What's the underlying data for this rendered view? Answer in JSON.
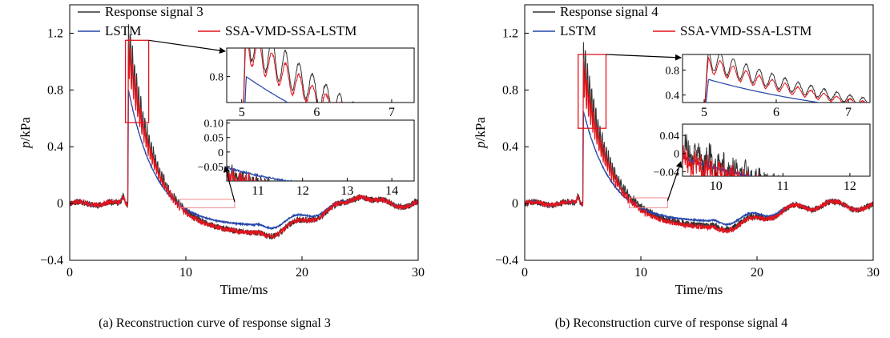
{
  "colors": {
    "response": "#333333",
    "lstm": "#2646a8",
    "ssa": "#e3141c",
    "zoom_box": "#e3141c",
    "zoom_box_light": "#f08a8a"
  },
  "chart_data": [
    {
      "id": "a",
      "type": "line",
      "caption": "(a) Reconstruction curve of response signal 3",
      "xlabel": "Time/ms",
      "ylabel_italic": "p",
      "ylabel_rest": "/kPa",
      "xlim": [
        0,
        30
      ],
      "ylim": [
        -0.4,
        1.4
      ],
      "xticks": [
        0,
        10,
        20,
        30
      ],
      "yticks": [
        -0.4,
        0,
        0.4,
        0.8,
        1.2
      ],
      "ytick_labels": [
        "−0.4",
        "0",
        "0.4",
        "0.8",
        "1.2"
      ],
      "legend": [
        {
          "name": "Response signal 3",
          "color_key": "response"
        },
        {
          "name": "LSTM",
          "color_key": "lstm"
        },
        {
          "name": "SSA-VMD-SSA-LSTM",
          "color_key": "ssa"
        }
      ],
      "series_shape": {
        "pre_level": 0.0,
        "onset": 5.0,
        "peak": {
          "response": 1.13,
          "lstm": 0.8,
          "ssa": 1.05
        },
        "trough_time": 16.0,
        "trough": {
          "response": -0.22,
          "lstm": -0.16,
          "ssa": -0.22
        },
        "bump_time": 25.0,
        "bump": 0.07,
        "end_level": 0.0
      },
      "zoom_regions": [
        {
          "xlim": [
            4.8,
            6.8
          ],
          "ylim": [
            0.57,
            1.15
          ],
          "color_key": "zoom_box"
        },
        {
          "xlim": [
            9.5,
            14.2
          ],
          "ylim": [
            -0.03,
            0.03
          ],
          "color_key": "zoom_box_light"
        }
      ],
      "insets": [
        {
          "xlim": [
            4.8,
            7.3
          ],
          "ylim": [
            0.6,
            1.02
          ],
          "xticks": [
            5,
            6,
            7
          ],
          "yticks": [
            0.8
          ],
          "ytick_labels": [
            "0.8"
          ]
        },
        {
          "xlim": [
            10.3,
            14.5
          ],
          "ylim": [
            -0.1,
            0.11
          ],
          "xticks": [
            11,
            12,
            13,
            14
          ],
          "yticks": [
            0.1,
            0.05,
            0,
            -0.05
          ],
          "ytick_labels": [
            "0.10",
            "0.05",
            "0",
            "−0.05"
          ]
        }
      ]
    },
    {
      "id": "b",
      "type": "line",
      "caption": "(b) Reconstruction curve of response signal 4",
      "xlabel": "Time/ms",
      "ylabel_italic": "p",
      "ylabel_rest": "/kPa",
      "xlim": [
        0,
        30
      ],
      "ylim": [
        -0.4,
        1.4
      ],
      "xticks": [
        0,
        10,
        20,
        30
      ],
      "yticks": [
        -0.4,
        0,
        0.4,
        0.8,
        1.2
      ],
      "ytick_labels": [
        "−0.4",
        "0",
        "0.4",
        "0.8",
        "1.2"
      ],
      "legend": [
        {
          "name": "Response signal 4",
          "color_key": "response"
        },
        {
          "name": "LSTM",
          "color_key": "lstm"
        },
        {
          "name": "SSA-VMD-SSA-LSTM",
          "color_key": "ssa"
        }
      ],
      "series_shape": {
        "pre_level": 0.0,
        "onset": 5.0,
        "peak": {
          "response": 0.99,
          "lstm": 0.65,
          "ssa": 0.9
        },
        "trough_time": 16.0,
        "trough": {
          "response": -0.17,
          "lstm": -0.13,
          "ssa": -0.18
        },
        "bump_time": 26.0,
        "bump": 0.02,
        "end_level": -0.02
      },
      "zoom_regions": [
        {
          "xlim": [
            4.6,
            7.0
          ],
          "ylim": [
            0.53,
            1.05
          ],
          "color_key": "zoom_box"
        },
        {
          "xlim": [
            9.0,
            12.3
          ],
          "ylim": [
            -0.03,
            0.04
          ],
          "color_key": "zoom_box_light"
        }
      ],
      "insets": [
        {
          "xlim": [
            4.7,
            7.3
          ],
          "ylim": [
            0.28,
            1.05
          ],
          "xticks": [
            5,
            6,
            7
          ],
          "yticks": [
            0.8,
            0.4
          ],
          "ytick_labels": [
            "0.8",
            "0.4"
          ]
        },
        {
          "xlim": [
            9.5,
            12.3
          ],
          "ylim": [
            -0.05,
            0.065
          ],
          "xticks": [
            10,
            11,
            12
          ],
          "yticks": [
            0.04,
            0,
            -0.04
          ],
          "ytick_labels": [
            "0.04",
            "0",
            "−0.04"
          ]
        }
      ]
    }
  ]
}
